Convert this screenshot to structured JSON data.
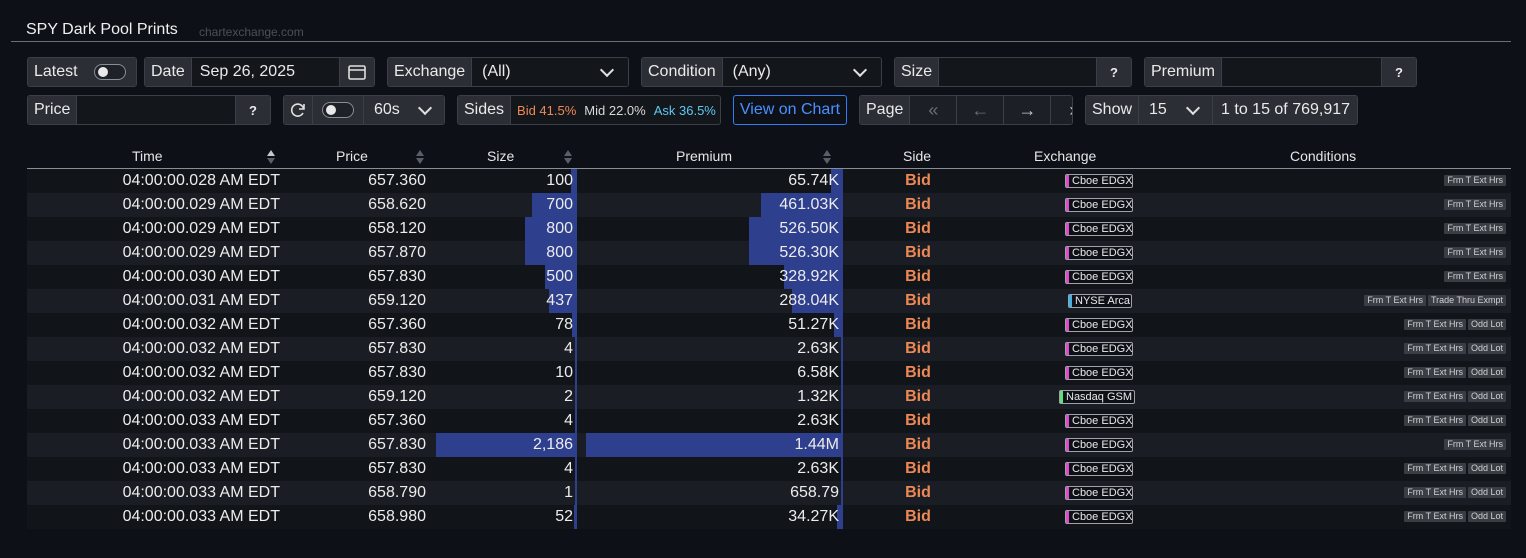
{
  "header": {
    "title": "SPY Dark Pool Prints",
    "source": "chartexchange.com"
  },
  "filters": {
    "latest_label": "Latest",
    "date_label": "Date",
    "date_value": "Sep 26, 2025",
    "exchange_label": "Exchange",
    "exchange_value": "(All)",
    "condition_label": "Condition",
    "condition_value": "(Any)",
    "size_label": "Size",
    "size_value": "",
    "premium_label": "Premium",
    "premium_value": "",
    "help_label": "?",
    "price_label": "Price",
    "price_value": "",
    "refresh_interval": "60s",
    "sides_label": "Sides",
    "sides_bid": "Bid 41.5%",
    "sides_mid": "Mid 22.0%",
    "sides_ask": "Ask 36.5%",
    "view_chart_label": "View on Chart",
    "page_label": "Page",
    "show_label": "Show",
    "show_value": "15",
    "range_text": "1 to 15 of 769,917"
  },
  "table": {
    "columns": [
      "Time",
      "Price",
      "Size",
      "Premium",
      "Side",
      "Exchange",
      "Conditions"
    ],
    "rows": [
      {
        "time": "04:00:00.028 AM EDT",
        "price": "657.360",
        "size": "100",
        "size_n": 100,
        "premium": "65.74K",
        "premium_n": 65740,
        "side": "Bid",
        "exchange": "Cboe EDGX",
        "conditions": [
          "Frm T Ext Hrs"
        ]
      },
      {
        "time": "04:00:00.029 AM EDT",
        "price": "658.620",
        "size": "700",
        "size_n": 700,
        "premium": "461.03K",
        "premium_n": 461030,
        "side": "Bid",
        "exchange": "Cboe EDGX",
        "conditions": [
          "Frm T Ext Hrs"
        ]
      },
      {
        "time": "04:00:00.029 AM EDT",
        "price": "658.120",
        "size": "800",
        "size_n": 800,
        "premium": "526.50K",
        "premium_n": 526500,
        "side": "Bid",
        "exchange": "Cboe EDGX",
        "conditions": [
          "Frm T Ext Hrs"
        ]
      },
      {
        "time": "04:00:00.029 AM EDT",
        "price": "657.870",
        "size": "800",
        "size_n": 800,
        "premium": "526.30K",
        "premium_n": 526300,
        "side": "Bid",
        "exchange": "Cboe EDGX",
        "conditions": [
          "Frm T Ext Hrs"
        ]
      },
      {
        "time": "04:00:00.030 AM EDT",
        "price": "657.830",
        "size": "500",
        "size_n": 500,
        "premium": "328.92K",
        "premium_n": 328920,
        "side": "Bid",
        "exchange": "Cboe EDGX",
        "conditions": [
          "Frm T Ext Hrs"
        ]
      },
      {
        "time": "04:00:00.031 AM EDT",
        "price": "659.120",
        "size": "437",
        "size_n": 437,
        "premium": "288.04K",
        "premium_n": 288040,
        "side": "Bid",
        "exchange": "NYSE Arca",
        "conditions": [
          "Frm T Ext Hrs",
          "Trade Thru Exmpt"
        ]
      },
      {
        "time": "04:00:00.032 AM EDT",
        "price": "657.360",
        "size": "78",
        "size_n": 78,
        "premium": "51.27K",
        "premium_n": 51270,
        "side": "Bid",
        "exchange": "Cboe EDGX",
        "conditions": [
          "Frm T Ext Hrs",
          "Odd Lot"
        ]
      },
      {
        "time": "04:00:00.032 AM EDT",
        "price": "657.830",
        "size": "4",
        "size_n": 4,
        "premium": "2.63K",
        "premium_n": 2630,
        "side": "Bid",
        "exchange": "Cboe EDGX",
        "conditions": [
          "Frm T Ext Hrs",
          "Odd Lot"
        ]
      },
      {
        "time": "04:00:00.032 AM EDT",
        "price": "657.830",
        "size": "10",
        "size_n": 10,
        "premium": "6.58K",
        "premium_n": 6580,
        "side": "Bid",
        "exchange": "Cboe EDGX",
        "conditions": [
          "Frm T Ext Hrs",
          "Odd Lot"
        ]
      },
      {
        "time": "04:00:00.032 AM EDT",
        "price": "659.120",
        "size": "2",
        "size_n": 2,
        "premium": "1.32K",
        "premium_n": 1320,
        "side": "Bid",
        "exchange": "Nasdaq GSM",
        "conditions": [
          "Frm T Ext Hrs",
          "Odd Lot"
        ]
      },
      {
        "time": "04:00:00.033 AM EDT",
        "price": "657.360",
        "size": "4",
        "size_n": 4,
        "premium": "2.63K",
        "premium_n": 2630,
        "side": "Bid",
        "exchange": "Cboe EDGX",
        "conditions": [
          "Frm T Ext Hrs",
          "Odd Lot"
        ]
      },
      {
        "time": "04:00:00.033 AM EDT",
        "price": "657.830",
        "size": "2,186",
        "size_n": 2186,
        "premium": "1.44M",
        "premium_n": 1440000,
        "side": "Bid",
        "exchange": "Cboe EDGX",
        "conditions": [
          "Frm T Ext Hrs"
        ]
      },
      {
        "time": "04:00:00.033 AM EDT",
        "price": "657.830",
        "size": "4",
        "size_n": 4,
        "premium": "2.63K",
        "premium_n": 2630,
        "side": "Bid",
        "exchange": "Cboe EDGX",
        "conditions": [
          "Frm T Ext Hrs",
          "Odd Lot"
        ]
      },
      {
        "time": "04:00:00.033 AM EDT",
        "price": "658.790",
        "size": "1",
        "size_n": 1,
        "premium": "658.79",
        "premium_n": 658.79,
        "side": "Bid",
        "exchange": "Cboe EDGX",
        "conditions": [
          "Frm T Ext Hrs",
          "Odd Lot"
        ]
      },
      {
        "time": "04:00:00.033 AM EDT",
        "price": "658.980",
        "size": "52",
        "size_n": 52,
        "premium": "34.27K",
        "premium_n": 34270,
        "side": "Bid",
        "exchange": "Cboe EDGX",
        "conditions": [
          "Frm T Ext Hrs",
          "Odd Lot"
        ]
      }
    ]
  },
  "exchange_colors": {
    "Cboe EDGX": "#d94fc8",
    "NYSE Arca": "#3fb3e6",
    "Nasdaq GSM": "#5fe07a"
  },
  "colors": {
    "bid": "#ee8956",
    "mid": "#d8d8d8",
    "ask": "#5ec8f0",
    "accent": "#2f7df5",
    "bar": "#2e3f8e"
  }
}
